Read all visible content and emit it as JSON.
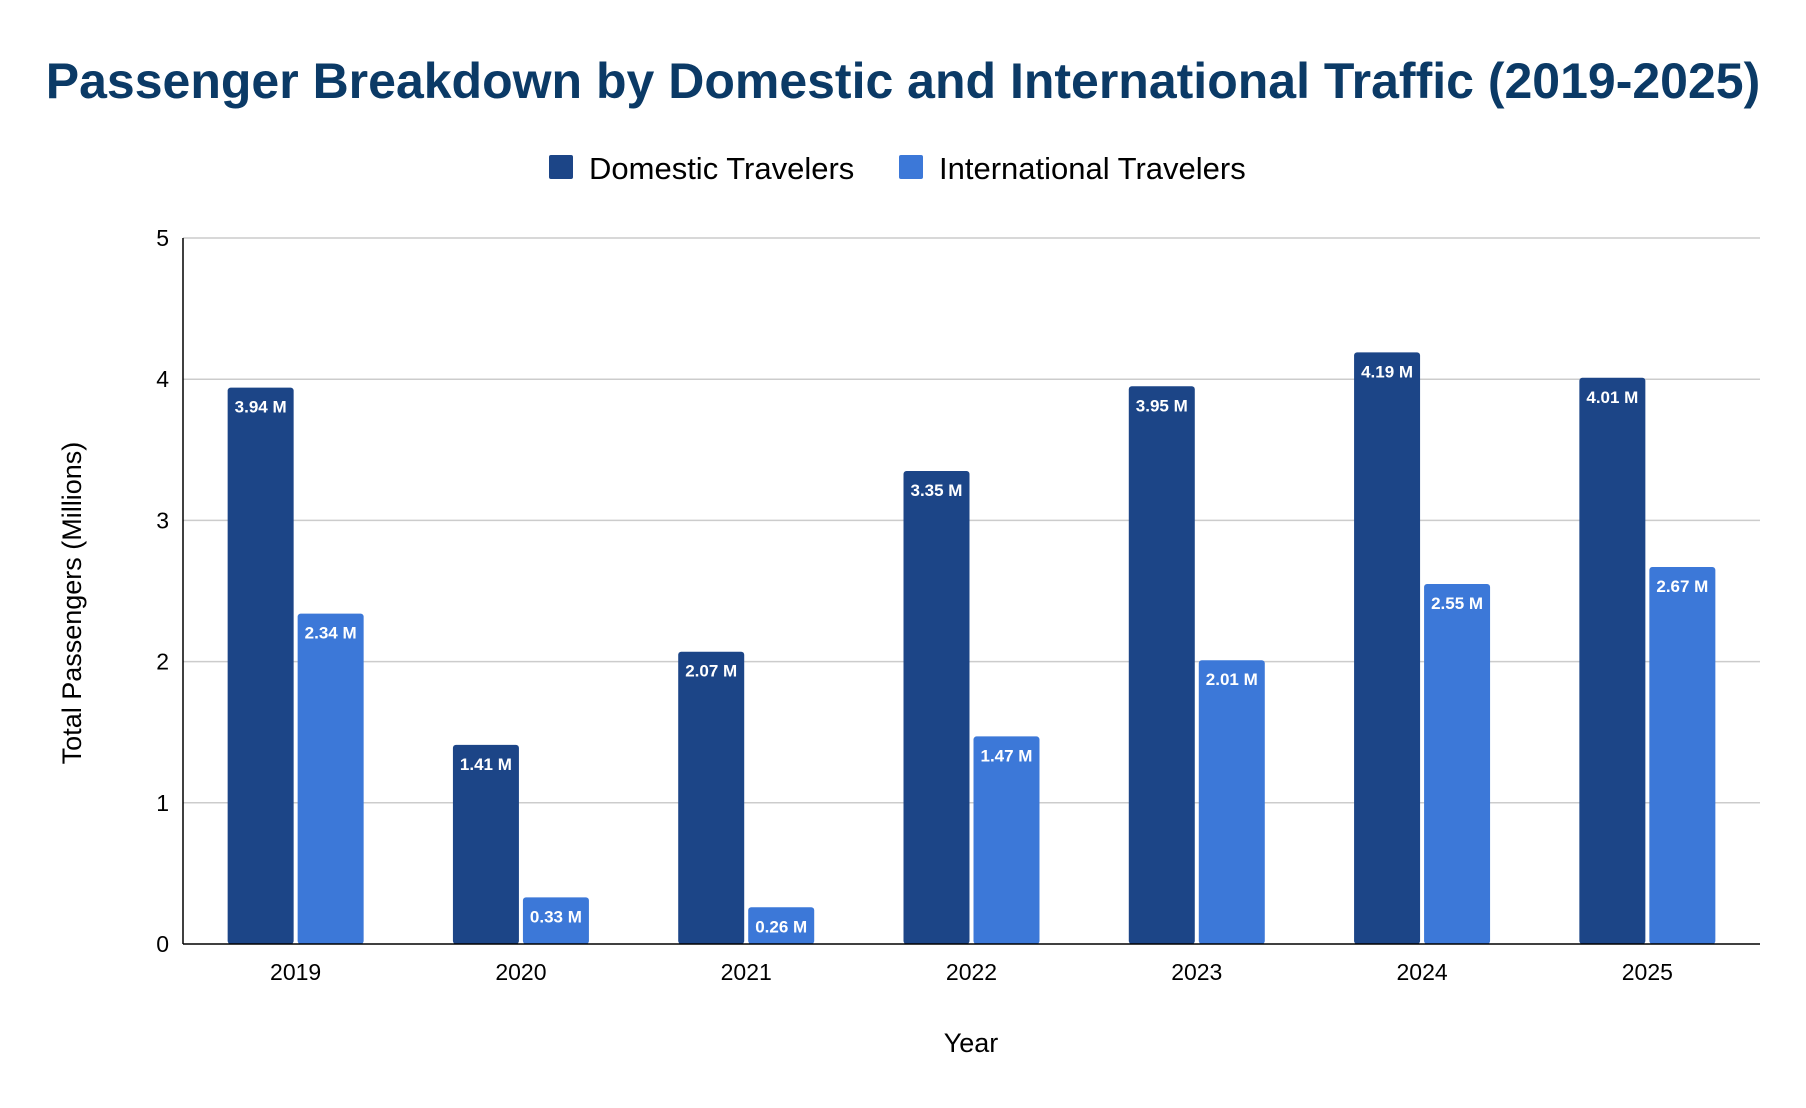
{
  "chart_data": {
    "type": "bar",
    "title": "Passenger Breakdown by Domestic and International Traffic (2019-2025)",
    "xlabel": "Year",
    "ylabel": "Total Passengers (Millions)",
    "categories": [
      "2019",
      "2020",
      "2021",
      "2022",
      "2023",
      "2024",
      "2025"
    ],
    "series": [
      {
        "name": "Domestic Travelers",
        "color": "#1c4587",
        "values": [
          3.94,
          1.41,
          2.07,
          3.35,
          3.95,
          4.19,
          4.01
        ],
        "labels": [
          "3.94 M",
          "1.41 M",
          "2.07 M",
          "3.35 M",
          "3.95 M",
          "4.19 M",
          "4.01 M"
        ]
      },
      {
        "name": "International Travelers",
        "color": "#3c78d8",
        "values": [
          2.34,
          0.33,
          0.26,
          1.47,
          2.01,
          2.55,
          2.67
        ],
        "labels": [
          "2.34 M",
          "0.33 M",
          "0.26 M",
          "1.47 M",
          "2.01 M",
          "2.55 M",
          "2.67 M"
        ]
      }
    ],
    "ylim": [
      0,
      5
    ],
    "yticks": [
      "0",
      "1",
      "2",
      "3",
      "4",
      "5"
    ],
    "grid": true,
    "legend": "top-center",
    "title_color": "#0b3a66",
    "text_color": "#000000",
    "grid_color": "#cccccc",
    "label_color": "#ffffff"
  }
}
